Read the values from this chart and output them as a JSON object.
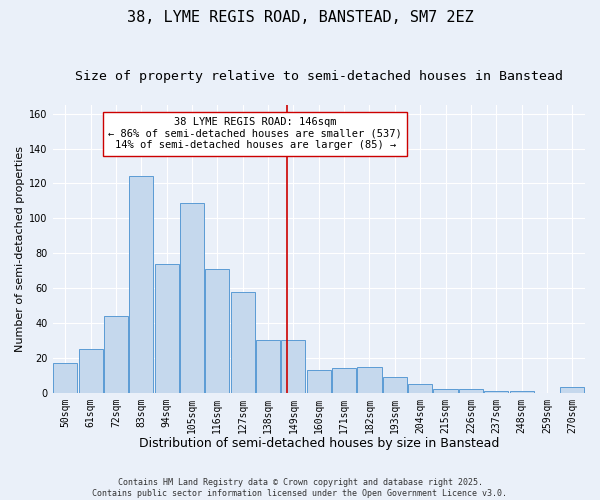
{
  "title1": "38, LYME REGIS ROAD, BANSTEAD, SM7 2EZ",
  "title2": "Size of property relative to semi-detached houses in Banstead",
  "xlabel": "Distribution of semi-detached houses by size in Banstead",
  "ylabel": "Number of semi-detached properties",
  "categories": [
    "50sqm",
    "61sqm",
    "72sqm",
    "83sqm",
    "94sqm",
    "105sqm",
    "116sqm",
    "127sqm",
    "138sqm",
    "149sqm",
    "160sqm",
    "171sqm",
    "182sqm",
    "193sqm",
    "204sqm",
    "215sqm",
    "226sqm",
    "237sqm",
    "248sqm",
    "259sqm",
    "270sqm"
  ],
  "values": [
    17,
    25,
    44,
    124,
    74,
    109,
    71,
    58,
    30,
    30,
    13,
    14,
    15,
    9,
    5,
    2,
    2,
    1,
    1,
    0,
    3
  ],
  "bar_color": "#c5d8ed",
  "bar_edge_color": "#5b9bd5",
  "property_size": 146,
  "vline_x": 8.73,
  "annotation_title": "38 LYME REGIS ROAD: 146sqm",
  "annotation_line1": "← 86% of semi-detached houses are smaller (537)",
  "annotation_line2": "14% of semi-detached houses are larger (85) →",
  "vline_color": "#cc0000",
  "annotation_box_color": "#ffffff",
  "annotation_box_edge": "#cc0000",
  "ylim": [
    0,
    165
  ],
  "yticks": [
    0,
    20,
    40,
    60,
    80,
    100,
    120,
    140,
    160
  ],
  "background_color": "#eaf0f9",
  "footer_line1": "Contains HM Land Registry data © Crown copyright and database right 2025.",
  "footer_line2": "Contains public sector information licensed under the Open Government Licence v3.0.",
  "title1_fontsize": 11,
  "title2_fontsize": 9.5,
  "xlabel_fontsize": 9,
  "ylabel_fontsize": 8,
  "tick_fontsize": 7,
  "annotation_fontsize": 7.5,
  "footer_fontsize": 6
}
